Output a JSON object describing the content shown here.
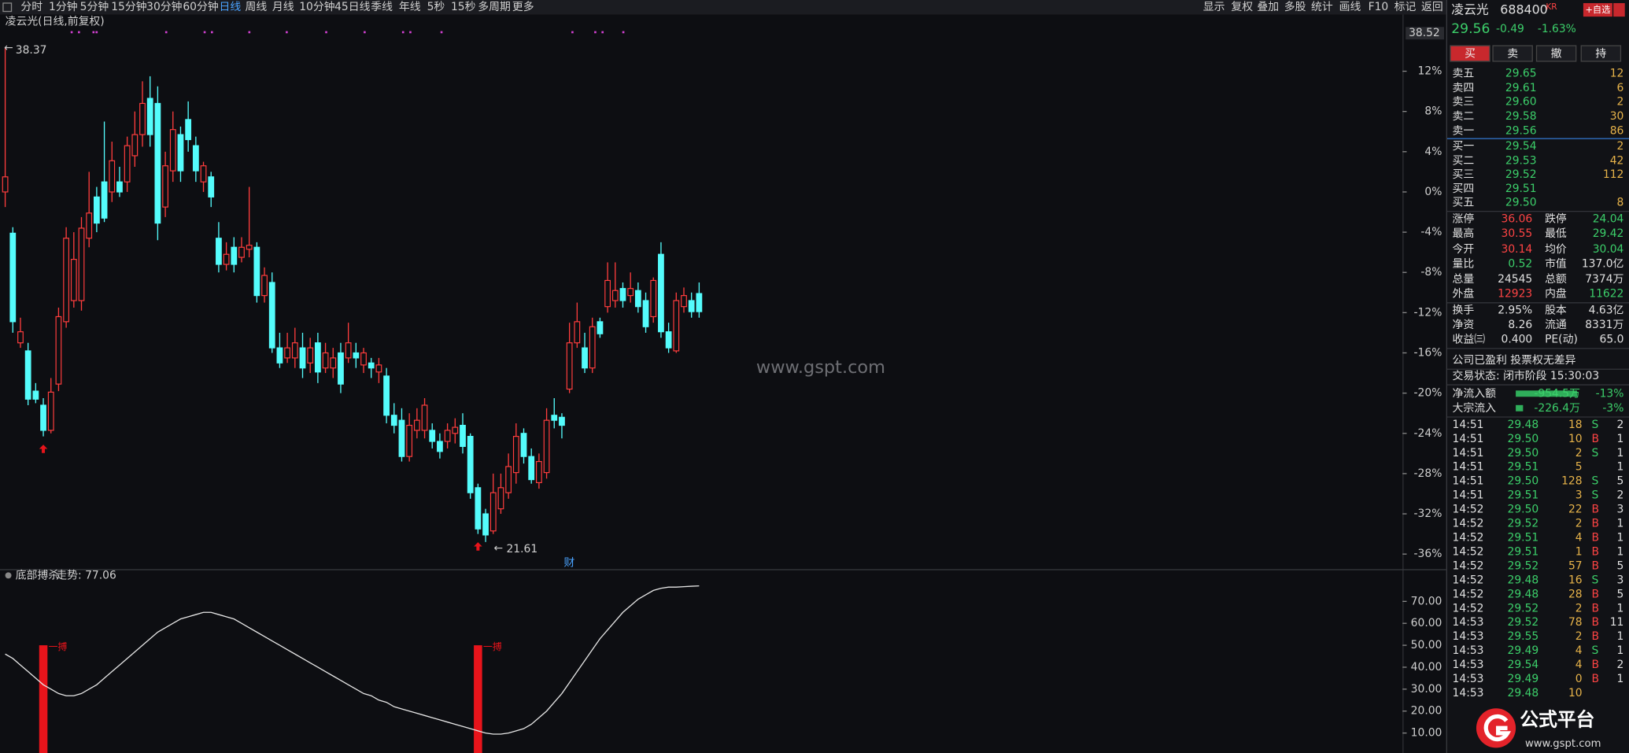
{
  "toolbar": {
    "left": [
      "分时",
      "1分钟",
      "5分钟",
      "15分钟",
      "30分钟",
      "60分钟",
      "日线",
      "周线",
      "月线",
      "10分钟",
      "45日线",
      "季线",
      "年线",
      "5秒",
      "15秒",
      "多周期",
      "更多"
    ],
    "right": [
      "显示",
      "复权",
      "叠加",
      "多股",
      "统计",
      "画线",
      "F10",
      "标记",
      "返回"
    ]
  },
  "chart_data": [
    {
      "type": "candlestick",
      "title": "凌云光(日线,前复权)",
      "up_color": "#ff3d3d",
      "down_color": "#54fcfc",
      "open": [
        0,
        -4.1,
        -15.0,
        -15.8,
        -19.8,
        -21.2,
        -23.7,
        -19.1,
        -12.9,
        -10.8,
        -10.8,
        -4.6,
        -0.5,
        1.0,
        0,
        1.0,
        1.0,
        3.6,
        5.7,
        9.3,
        8.8,
        -1.5,
        2.1,
        5.7,
        7.2,
        4.6,
        1.0,
        1.5,
        -4.6,
        -7.2,
        -5.5,
        -6.5,
        -5.7,
        -5.5,
        -10.3,
        -9.0,
        -15.5,
        -16.5,
        -16.5,
        -15.5,
        -17.0,
        -15.0,
        -17.5,
        -17.5,
        -16.0,
        -16.5,
        -16.0,
        -17.2,
        -17.0,
        -17.9,
        -18.3,
        -22.2,
        -22.7,
        -26.3,
        -23.7,
        -23.7,
        -23.7,
        -24.8,
        -24.8,
        -24.0,
        -23.2,
        -24.3,
        -29.4,
        -32.0,
        -33.7,
        -31.5,
        -29.9,
        -27.9,
        -24.0,
        -26.3,
        -28.9,
        -27.9,
        -22.2,
        -22.4,
        -19.6,
        -15.0,
        -15.5,
        -17.5,
        -12.9,
        -11.4,
        -10.8,
        -9.6,
        -10.3,
        -9.8,
        -10.8,
        -12.4,
        -6.2,
        -13.9,
        -15.8,
        -11.4,
        -10.8,
        -10.1
      ],
      "high": [
        14.3,
        -3.5,
        -12.5,
        -15.0,
        -19.0,
        -20.5,
        -18.5,
        -11.5,
        -3.5,
        -4.0,
        -2.5,
        2.0,
        0.5,
        7.0,
        5.0,
        2.5,
        5.5,
        8.0,
        11.0,
        11.5,
        10.5,
        4.0,
        8.0,
        6.5,
        9.0,
        5.5,
        3.0,
        2.0,
        -3.0,
        -5.0,
        -4.5,
        -4.5,
        0.5,
        -5.0,
        -7.5,
        -8.0,
        -14.0,
        -14.0,
        -13.5,
        -14.0,
        -14.5,
        -14.0,
        -15.0,
        -15.5,
        -15.0,
        -13.0,
        -15.0,
        -15.5,
        -16.5,
        -16.5,
        -17.5,
        -21.0,
        -21.5,
        -22.0,
        -21.5,
        -20.5,
        -23.0,
        -24.0,
        -23.0,
        -22.5,
        -22.0,
        -24.0,
        -29.0,
        -31.5,
        -28.0,
        -28.0,
        -26.0,
        -23.0,
        -23.5,
        -25.5,
        -26.0,
        -21.5,
        -20.5,
        -22.0,
        -13.0,
        -11.0,
        -14.0,
        -12.5,
        -12.5,
        -7.0,
        -7.0,
        -9.0,
        -8.0,
        -9.0,
        -10.0,
        -8.5,
        -5.0,
        -13.0,
        -10.0,
        -9.5,
        -10.0,
        -9.0
      ],
      "low": [
        -1.5,
        -14.0,
        -15.5,
        -21.2,
        -21.0,
        -24.3,
        -24.0,
        -19.8,
        -13.5,
        -11.5,
        -11.8,
        -5.5,
        -4.0,
        -3.0,
        -1.0,
        -0.5,
        0,
        2.5,
        4.5,
        4.5,
        -4.8,
        -2.5,
        1.0,
        1.0,
        4.0,
        1.0,
        0,
        -1.5,
        -8.0,
        -7.8,
        -8.0,
        -7.0,
        -6.5,
        -11.0,
        -11.0,
        -16.0,
        -17.5,
        -17.0,
        -17.5,
        -18.5,
        -18.0,
        -19.0,
        -18.0,
        -18.5,
        -20.0,
        -17.0,
        -17.5,
        -18.0,
        -18.5,
        -19.0,
        -23.0,
        -24.0,
        -26.8,
        -26.8,
        -24.5,
        -24.5,
        -25.5,
        -26.5,
        -25.5,
        -25.0,
        -26.0,
        -30.5,
        -34.0,
        -34.8,
        -34.0,
        -32.0,
        -30.5,
        -29.0,
        -27.0,
        -29.0,
        -29.5,
        -28.5,
        -23.5,
        -24.5,
        -20.0,
        -15.5,
        -18.0,
        -18.0,
        -14.5,
        -12.0,
        -11.5,
        -11.5,
        -11.0,
        -12.0,
        -14.0,
        -13.0,
        -14.5,
        -16.0,
        -16.0,
        -12.0,
        -12.5,
        -12.5
      ],
      "close": [
        1.5,
        -12.9,
        -13.9,
        -20.6,
        -20.6,
        -23.7,
        -19.9,
        -12.4,
        -4.6,
        -6.7,
        -3.6,
        -2.1,
        -3.1,
        -2.6,
        3.1,
        0,
        4.6,
        5.7,
        8.8,
        5.7,
        -3.1,
        2.6,
        6.2,
        2.1,
        5.2,
        2.1,
        2.6,
        -0.5,
        -7.2,
        -6.2,
        -7.2,
        -5.5,
        -5.3,
        -10.3,
        -8.3,
        -15.5,
        -17.0,
        -15.5,
        -15.0,
        -17.5,
        -15.5,
        -17.9,
        -16.0,
        -16.5,
        -19.1,
        -15.0,
        -16.5,
        -16.0,
        -17.5,
        -17.2,
        -22.2,
        -23.2,
        -26.3,
        -23.2,
        -22.7,
        -21.2,
        -24.8,
        -25.8,
        -23.7,
        -23.4,
        -25.3,
        -29.9,
        -33.5,
        -34.1,
        -29.9,
        -29.4,
        -27.3,
        -24.3,
        -26.3,
        -28.6,
        -26.8,
        -22.7,
        -22.7,
        -23.2,
        -15.0,
        -12.9,
        -17.5,
        -13.4,
        -14.1,
        -8.8,
        -9.8,
        -10.8,
        -9.6,
        -11.4,
        -13.4,
        -8.8,
        -13.9,
        -15.5,
        -10.8,
        -10.3,
        -11.9,
        -11.9
      ],
      "ylim": [
        -37.5,
        16.5
      ],
      "yticks": [
        {
          "value": 12,
          "label": "12%"
        },
        {
          "value": 8,
          "label": "8%"
        },
        {
          "value": 4,
          "label": "4%"
        },
        {
          "value": 0,
          "label": "0%"
        },
        {
          "value": -4,
          "label": "-4%"
        },
        {
          "value": -8,
          "label": "-8%"
        },
        {
          "value": -12,
          "label": "-12%"
        },
        {
          "value": -16,
          "label": "-16%"
        },
        {
          "value": -20,
          "label": "-20%"
        },
        {
          "value": -24,
          "label": "-24%"
        },
        {
          "value": -28,
          "label": "-28%"
        },
        {
          "value": -32,
          "label": "-32%"
        },
        {
          "value": -36,
          "label": "-36%"
        }
      ],
      "axis_top_label": "38.52",
      "high_label": "38.37",
      "low_label": "21.61",
      "event_marker": "财"
    },
    {
      "type": "line",
      "title": "底部搏杀",
      "legend_label": "走势: 77.06",
      "series": [
        {
          "color": "#e6e6e6",
          "values": [
            46,
            44,
            41,
            38,
            35,
            32,
            30,
            28,
            27,
            27,
            28,
            30,
            32,
            35,
            38,
            41,
            44,
            47,
            50,
            53,
            56,
            58,
            60,
            62,
            63,
            64,
            65,
            65,
            64,
            63,
            62,
            60,
            58,
            56,
            54,
            52,
            50,
            48,
            46,
            44,
            42,
            40,
            38,
            36,
            34,
            32,
            30,
            28,
            27,
            25,
            24,
            22,
            21,
            20,
            19,
            18,
            17,
            16,
            15,
            14,
            13,
            12,
            11,
            10,
            9.5,
            9.5,
            10,
            11,
            12,
            14,
            17,
            20,
            24,
            28,
            33,
            38,
            43,
            48,
            53,
            57,
            61,
            65,
            68,
            71,
            73,
            75,
            76,
            76.5,
            76.5,
            76.7,
            76.9,
            77.06
          ]
        }
      ],
      "signal": {
        "color": "#e8141b",
        "values": [
          null,
          null,
          null,
          null,
          null,
          50,
          null,
          null,
          null,
          null,
          null,
          null,
          null,
          null,
          null,
          null,
          null,
          null,
          null,
          null,
          null,
          null,
          null,
          null,
          null,
          null,
          null,
          null,
          null,
          null,
          null,
          null,
          null,
          null,
          null,
          null,
          null,
          null,
          null,
          null,
          null,
          null,
          null,
          null,
          null,
          null,
          null,
          null,
          null,
          null,
          null,
          null,
          null,
          null,
          null,
          null,
          null,
          null,
          null,
          null,
          null,
          null,
          50,
          null,
          null,
          null,
          null,
          null,
          null,
          null,
          null,
          null,
          null,
          null,
          null,
          null,
          null,
          null,
          null,
          null,
          null,
          null,
          null,
          null,
          null,
          null,
          null,
          null,
          null,
          null,
          null,
          null
        ],
        "labels": [
          null,
          null,
          null,
          null,
          null,
          "一搏",
          null,
          null,
          null,
          null,
          null,
          null,
          null,
          null,
          null,
          null,
          null,
          null,
          null,
          null,
          null,
          null,
          null,
          null,
          null,
          null,
          null,
          null,
          null,
          null,
          null,
          null,
          null,
          null,
          null,
          null,
          null,
          null,
          null,
          null,
          null,
          null,
          null,
          null,
          null,
          null,
          null,
          null,
          null,
          null,
          null,
          null,
          null,
          null,
          null,
          null,
          null,
          null,
          null,
          null,
          null,
          null,
          "一搏",
          null,
          null,
          null,
          null,
          null,
          null,
          null,
          null,
          null,
          null,
          null,
          null,
          null,
          null,
          null,
          null,
          null,
          null,
          null,
          null,
          null,
          null,
          null,
          null,
          null,
          null,
          null,
          null,
          null
        ]
      },
      "ylim": [
        0.9,
        82.8
      ],
      "yticks": [
        {
          "value": 70,
          "label": "70.00"
        },
        {
          "value": 60,
          "label": "60.00"
        },
        {
          "value": 50,
          "label": "50.00"
        },
        {
          "value": 40,
          "label": "40.00"
        },
        {
          "value": 30,
          "label": "30.00"
        },
        {
          "value": 20,
          "label": "20.00"
        },
        {
          "value": 10,
          "label": "10.00"
        }
      ]
    }
  ],
  "watermark": "www.gspt.com",
  "quote": {
    "name": "凌云光",
    "code": "688400",
    "tag": "KR",
    "add_button": "+自选",
    "price": "29.56",
    "change": "-0.49",
    "change_pct": "-1.63%",
    "buttons": [
      "买",
      "卖",
      "撤",
      "持"
    ]
  },
  "order_book": {
    "asks": [
      [
        "卖五",
        "29.65",
        "12"
      ],
      [
        "卖四",
        "29.61",
        "6"
      ],
      [
        "卖三",
        "29.60",
        "2"
      ],
      [
        "卖二",
        "29.58",
        "30"
      ],
      [
        "卖一",
        "29.56",
        "86"
      ]
    ],
    "bids": [
      [
        "买一",
        "29.54",
        "2"
      ],
      [
        "买二",
        "29.53",
        "42"
      ],
      [
        "买三",
        "29.52",
        "112"
      ],
      [
        "买四",
        "29.51",
        null
      ],
      [
        "买五",
        "29.50",
        "8"
      ]
    ]
  },
  "stats": [
    [
      {
        "label": "涨停",
        "value": "36.06",
        "color": "#ff4444"
      },
      {
        "label": "跌停",
        "value": "24.04",
        "color": "#3ccf6a"
      }
    ],
    [
      {
        "label": "最高",
        "value": "30.55",
        "color": "#ff4444"
      },
      {
        "label": "最低",
        "value": "29.42",
        "color": "#3ccf6a"
      }
    ],
    [
      {
        "label": "今开",
        "value": "30.14",
        "color": "#ff4444"
      },
      {
        "label": "均价",
        "value": "30.04",
        "color": "#3ccf6a"
      }
    ],
    [
      {
        "label": "量比",
        "value": "0.52",
        "color": "#3ccf6a"
      },
      {
        "label": "市值",
        "value": "137.0亿",
        "color": "#e0e0e0"
      }
    ],
    [
      {
        "label": "总量",
        "value": "24545",
        "color": "#e0e0e0"
      },
      {
        "label": "总额",
        "value": "7374万",
        "color": "#e0e0e0"
      }
    ],
    [
      {
        "label": "外盘",
        "value": "12923",
        "color": "#ff4444"
      },
      {
        "label": "内盘",
        "value": "11622",
        "color": "#3ccf6a"
      }
    ],
    [
      {
        "label": "换手",
        "value": "2.95%",
        "color": "#e0e0e0"
      },
      {
        "label": "股本",
        "value": "4.63亿",
        "color": "#e0e0e0"
      }
    ],
    [
      {
        "label": "净资",
        "value": "8.26",
        "color": "#e0e0e0"
      },
      {
        "label": "流通",
        "value": "8331万",
        "color": "#e0e0e0"
      }
    ],
    [
      {
        "label": "收益㈢",
        "value": "0.400",
        "color": "#e0e0e0"
      },
      {
        "label": "PE(动)",
        "value": "65.0",
        "color": "#e0e0e0"
      }
    ]
  ],
  "notice": "公司已盈利 投票权无差异",
  "status": "交易状态: 闭市阶段 15:30:03",
  "flows": [
    {
      "label": "净流入额",
      "amount": "-954.5万",
      "pct": "-13%"
    },
    {
      "label": "大宗流入",
      "amount": "-226.4万",
      "pct": "-3%"
    }
  ],
  "trades": [
    [
      "14:51",
      "29.48",
      "18",
      "S",
      "2"
    ],
    [
      "14:51",
      "29.50",
      "10",
      "B",
      "1"
    ],
    [
      "14:51",
      "29.50",
      "2",
      "S",
      "1"
    ],
    [
      "14:51",
      "29.51",
      "5",
      null,
      "1"
    ],
    [
      "14:51",
      "29.50",
      "128",
      "S",
      "5"
    ],
    [
      "14:51",
      "29.51",
      "3",
      "S",
      "2"
    ],
    [
      "14:52",
      "29.50",
      "22",
      "B",
      "3"
    ],
    [
      "14:52",
      "29.52",
      "2",
      "B",
      "1"
    ],
    [
      "14:52",
      "29.51",
      "4",
      "B",
      "1"
    ],
    [
      "14:52",
      "29.51",
      "1",
      "B",
      "1"
    ],
    [
      "14:52",
      "29.52",
      "57",
      "B",
      "5"
    ],
    [
      "14:52",
      "29.48",
      "16",
      "S",
      "3"
    ],
    [
      "14:52",
      "29.48",
      "28",
      "B",
      "5"
    ],
    [
      "14:52",
      "29.52",
      "2",
      "B",
      "1"
    ],
    [
      "14:53",
      "29.52",
      "78",
      "B",
      "11"
    ],
    [
      "14:53",
      "29.55",
      "2",
      "B",
      "1"
    ],
    [
      "14:53",
      "29.49",
      "4",
      "S",
      "1"
    ],
    [
      "14:53",
      "29.54",
      "4",
      "B",
      "2"
    ],
    [
      "14:53",
      "29.49",
      "0",
      "B",
      "1"
    ],
    [
      "14:53",
      "29.48",
      "10",
      null,
      null
    ]
  ],
  "logo": {
    "brand": "公式平台",
    "url": "www.gspt.com"
  }
}
